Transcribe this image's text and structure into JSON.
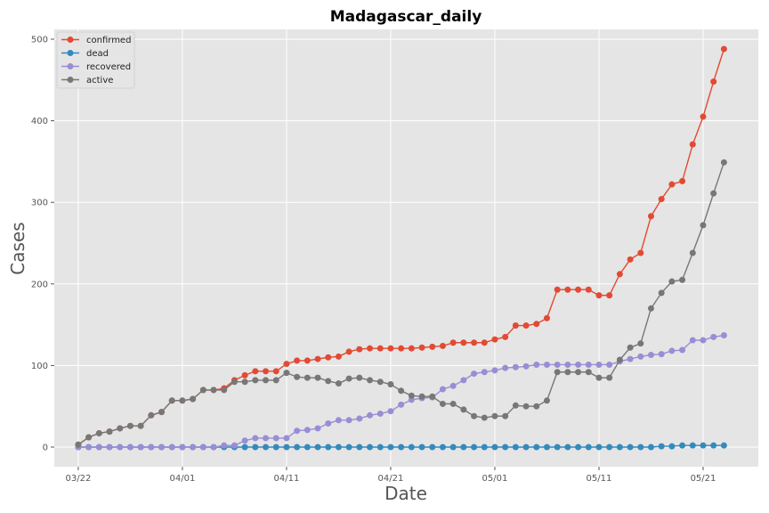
{
  "chart_data": {
    "type": "line",
    "title": "Madagascar_daily",
    "xlabel": "Date",
    "ylabel": "Cases",
    "x_start": "03/22",
    "x_ticks": [
      "03/22",
      "04/01",
      "04/11",
      "04/21",
      "05/01",
      "05/11",
      "05/21"
    ],
    "y_ticks": [
      0,
      100,
      200,
      300,
      400,
      500
    ],
    "xlim_days": [
      -2.3,
      65.3
    ],
    "ylim": [
      -24,
      512
    ],
    "grid": true,
    "legend_position": "top-left",
    "series": [
      {
        "name": "confirmed",
        "color": "#E24A33",
        "values": [
          3,
          12,
          17,
          19,
          23,
          26,
          26,
          39,
          43,
          57,
          57,
          59,
          70,
          70,
          72,
          82,
          88,
          93,
          93,
          93,
          102,
          106,
          106,
          108,
          110,
          111,
          117,
          120,
          121,
          121,
          121,
          121,
          121,
          122,
          123,
          124,
          128,
          128,
          128,
          128,
          132,
          135,
          149,
          149,
          151,
          158,
          193,
          193,
          193,
          193,
          186,
          186,
          212,
          230,
          238,
          283,
          304,
          322,
          326,
          371,
          405,
          448,
          488
        ]
      },
      {
        "name": "dead",
        "color": "#348ABD",
        "values": [
          0,
          0,
          0,
          0,
          0,
          0,
          0,
          0,
          0,
          0,
          0,
          0,
          0,
          0,
          0,
          0,
          0,
          0,
          0,
          0,
          0,
          0,
          0,
          0,
          0,
          0,
          0,
          0,
          0,
          0,
          0,
          0,
          0,
          0,
          0,
          0,
          0,
          0,
          0,
          0,
          0,
          0,
          0,
          0,
          0,
          0,
          0,
          0,
          0,
          0,
          0,
          0,
          0,
          0,
          0,
          0,
          1,
          1,
          2,
          2,
          2,
          2,
          2
        ]
      },
      {
        "name": "recovered",
        "color": "#988ED5",
        "values": [
          0,
          0,
          0,
          0,
          0,
          0,
          0,
          0,
          0,
          0,
          0,
          0,
          0,
          0,
          2,
          2,
          8,
          11,
          11,
          11,
          11,
          20,
          21,
          23,
          29,
          33,
          33,
          35,
          39,
          41,
          44,
          52,
          58,
          60,
          61,
          71,
          75,
          82,
          90,
          92,
          94,
          97,
          98,
          99,
          101,
          101,
          101,
          101,
          101,
          101,
          101,
          101,
          105,
          108,
          111,
          113,
          114,
          118,
          119,
          131,
          131,
          135,
          137
        ]
      },
      {
        "name": "active",
        "color": "#777777",
        "values": [
          3,
          12,
          17,
          19,
          23,
          26,
          26,
          39,
          43,
          57,
          57,
          59,
          70,
          70,
          70,
          80,
          80,
          82,
          82,
          82,
          91,
          86,
          85,
          85,
          81,
          78,
          84,
          85,
          82,
          80,
          77,
          69,
          63,
          62,
          62,
          53,
          53,
          46,
          38,
          36,
          38,
          38,
          51,
          50,
          50,
          57,
          92,
          92,
          92,
          92,
          85,
          85,
          107,
          122,
          127,
          170,
          189,
          203,
          205,
          238,
          272,
          311,
          349
        ]
      }
    ]
  }
}
